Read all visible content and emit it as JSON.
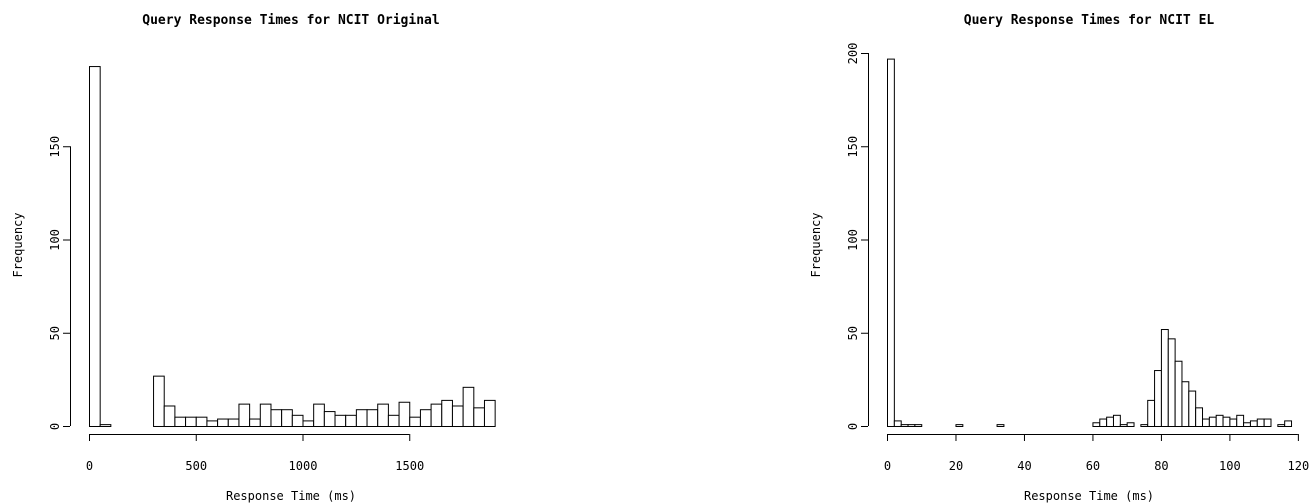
{
  "chart_data": [
    {
      "type": "bar",
      "title": "Query Response Times for NCIT Original",
      "xlabel": "Response Time (ms)",
      "ylabel": "Frequency",
      "xlim": [
        0,
        1900
      ],
      "ylim": [
        0,
        195
      ],
      "x_ticks": [
        0,
        500,
        1000,
        1500
      ],
      "y_ticks": [
        0,
        50,
        100,
        150
      ],
      "bin_width": 50,
      "bins_start": [
        0,
        50,
        100,
        150,
        200,
        250,
        300,
        350,
        400,
        450,
        500,
        550,
        600,
        650,
        700,
        750,
        800,
        850,
        900,
        950,
        1000,
        1050,
        1100,
        1150,
        1200,
        1250,
        1300,
        1350,
        1400,
        1450,
        1500,
        1550,
        1600,
        1650,
        1700,
        1750,
        1800,
        1850
      ],
      "values": [
        193,
        1,
        0,
        0,
        0,
        0,
        27,
        11,
        5,
        5,
        5,
        3,
        4,
        4,
        12,
        4,
        12,
        9,
        9,
        6,
        3,
        12,
        8,
        6,
        6,
        9,
        9,
        12,
        6,
        13,
        5,
        9,
        12,
        14,
        11,
        21,
        10,
        14
      ],
      "grid": false
    },
    {
      "type": "bar",
      "title": "Query Response Times for NCIT EL",
      "xlabel": "Response Time (ms)",
      "ylabel": "Frequency",
      "xlim": [
        0,
        120
      ],
      "ylim": [
        0,
        200
      ],
      "x_ticks": [
        0,
        20,
        40,
        60,
        80,
        100,
        120
      ],
      "y_ticks": [
        0,
        50,
        100,
        150,
        200
      ],
      "bin_width": 2,
      "bins_start": [
        0,
        2,
        4,
        6,
        8,
        10,
        12,
        14,
        16,
        18,
        20,
        22,
        24,
        26,
        28,
        30,
        32,
        34,
        36,
        38,
        40,
        42,
        44,
        46,
        48,
        50,
        52,
        54,
        56,
        58,
        60,
        62,
        64,
        66,
        68,
        70,
        72,
        74,
        76,
        78,
        80,
        82,
        84,
        86,
        88,
        90,
        92,
        94,
        96,
        98,
        100,
        102,
        104,
        106,
        108,
        110,
        112,
        114,
        116
      ],
      "values": [
        197,
        3,
        1,
        1,
        1,
        0,
        0,
        0,
        0,
        0,
        1,
        0,
        0,
        0,
        0,
        0,
        1,
        0,
        0,
        0,
        0,
        0,
        0,
        0,
        0,
        0,
        0,
        0,
        0,
        0,
        2,
        4,
        5,
        6,
        1,
        2,
        0,
        1,
        14,
        30,
        52,
        47,
        35,
        24,
        19,
        10,
        4,
        5,
        6,
        5,
        4,
        6,
        2,
        3,
        4,
        4,
        0,
        1,
        3
      ],
      "grid": false
    }
  ]
}
